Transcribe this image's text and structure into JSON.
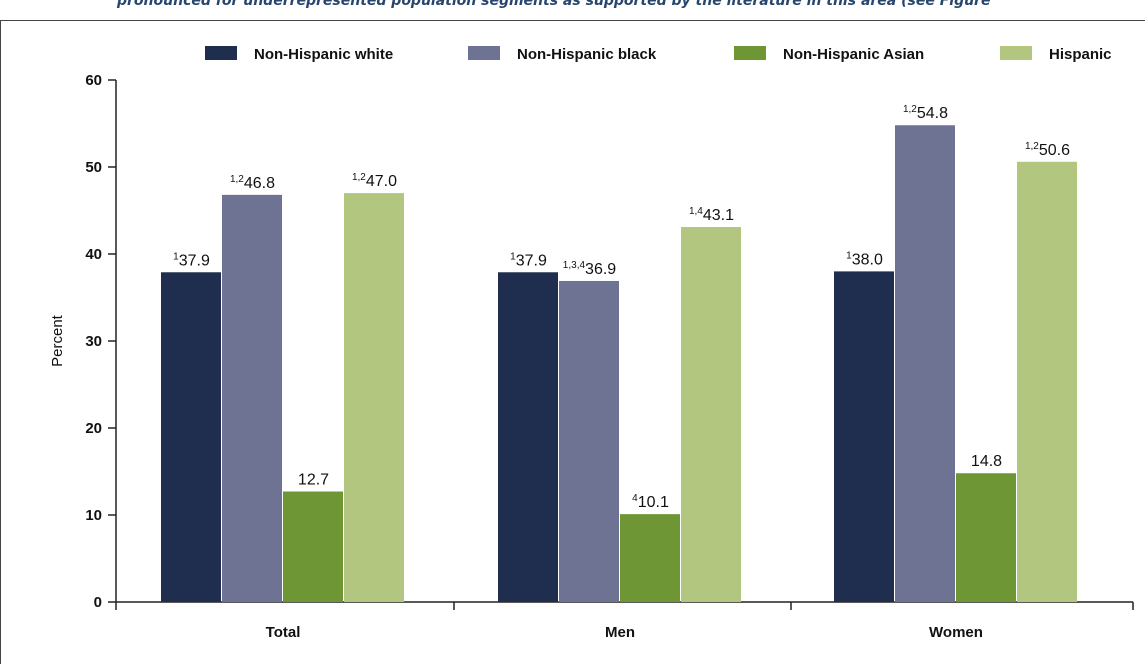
{
  "page": {
    "caption": "pronounced for underrepresented population segments as supported by the literature in this area (see Figure"
  },
  "chart_data": {
    "type": "bar",
    "ylabel": "Percent",
    "xlabel": "",
    "ylim": [
      0,
      60
    ],
    "yticks": [
      0,
      10,
      20,
      30,
      40,
      50,
      60
    ],
    "categories": [
      "Total",
      "Men",
      "Women"
    ],
    "legend_position": "top",
    "grid": false,
    "series": [
      {
        "name": "Non-Hispanic white",
        "color": "#1f2d4e",
        "values": [
          37.9,
          37.9,
          38.0
        ],
        "labels": [
          "37.9",
          "37.9",
          "38.0"
        ],
        "superscripts": [
          "1",
          "1",
          "1"
        ]
      },
      {
        "name": "Non-Hispanic black",
        "color": "#6e7394",
        "values": [
          46.8,
          36.9,
          54.8
        ],
        "labels": [
          "46.8",
          "36.9",
          "54.8"
        ],
        "superscripts": [
          "1,2",
          "1,3,4",
          "1,2"
        ]
      },
      {
        "name": "Non-Hispanic Asian",
        "color": "#6e9635",
        "values": [
          12.7,
          10.1,
          14.8
        ],
        "labels": [
          "12.7",
          "10.1",
          "14.8"
        ],
        "superscripts": [
          "",
          "4",
          ""
        ]
      },
      {
        "name": "Hispanic",
        "color": "#b2c67f",
        "values": [
          47.0,
          43.1,
          50.6
        ],
        "labels": [
          "47.0",
          "43.1",
          "50.6"
        ],
        "superscripts": [
          "1,2",
          "1,4",
          "1,2"
        ]
      }
    ]
  }
}
